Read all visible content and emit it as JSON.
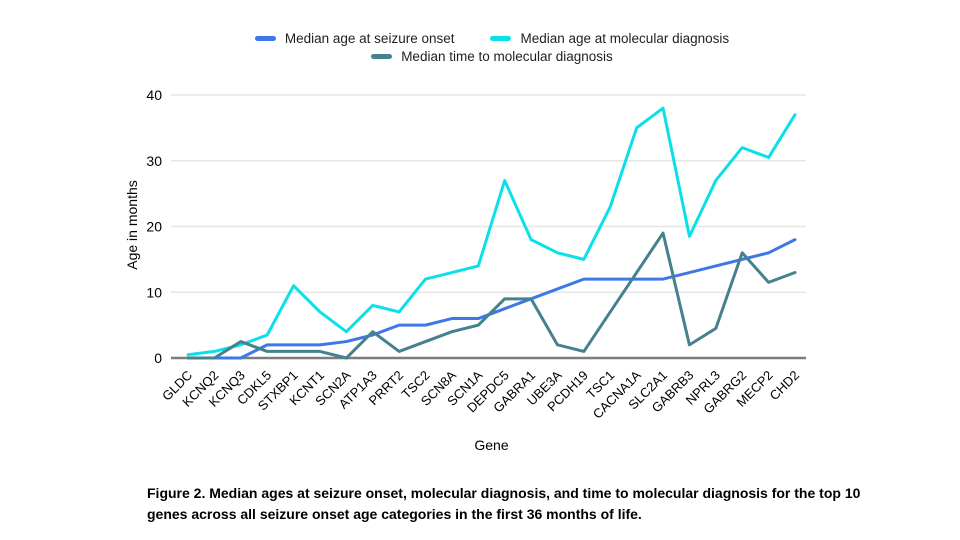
{
  "legend": {
    "items": [
      {
        "label": "Median age at seizure onset"
      },
      {
        "label": "Median age at molecular diagnosis"
      },
      {
        "label": "Median time to molecular diagnosis"
      }
    ]
  },
  "axes": {
    "y_title": "Age in months",
    "x_title": "Gene"
  },
  "caption": {
    "lines": [
      "Figure 2. Median ages at seizure onset, molecular diagnosis, and time to molecular diagnosis for the top 10",
      "genes across all seizure onset age categories in the first 36 months of life."
    ]
  },
  "chart_data": {
    "type": "line",
    "title": "",
    "xlabel": "Gene",
    "ylabel": "Age in months",
    "ylim": [
      0,
      40
    ],
    "yticks": [
      0,
      10,
      20,
      30,
      40
    ],
    "grid": true,
    "legend_position": "top",
    "categories": [
      "GLDC",
      "KCNQ2",
      "KCNQ3",
      "CDKL5",
      "STXBP1",
      "KCNT1",
      "SCN2A",
      "ATP1A3",
      "PRRT2",
      "TSC2",
      "SCN8A",
      "SCN1A",
      "DEPDC5",
      "GABRA1",
      "UBE3A",
      "PCDH19",
      "TSC1",
      "CACNA1A",
      "SLC2A1",
      "GABRB3",
      "NPRL3",
      "GABRG2",
      "MECP2",
      "CHD2"
    ],
    "series": [
      {
        "name": "Median age at seizure onset",
        "color": "#3e78e8",
        "values": [
          0,
          0,
          0,
          2,
          2,
          2,
          2.5,
          3.5,
          5,
          5,
          6,
          6,
          7.5,
          9,
          10.5,
          12,
          12,
          12,
          12,
          13,
          14,
          15,
          16,
          18
        ]
      },
      {
        "name": "Median age at molecular diagnosis",
        "color": "#0be0e8",
        "values": [
          0.5,
          1,
          2,
          3.5,
          11,
          7,
          4,
          8,
          7,
          12,
          13,
          14,
          27,
          18,
          16,
          15,
          23,
          35,
          38,
          18.5,
          27,
          32,
          30.5,
          37
        ]
      },
      {
        "name": "Median time to molecular diagnosis",
        "color": "#45818e",
        "values": [
          0,
          0,
          2.5,
          1,
          1,
          1,
          0,
          4,
          1,
          2.5,
          4,
          5,
          9,
          9,
          2,
          1,
          7,
          13,
          19,
          2,
          4.5,
          16,
          11.5,
          13
        ]
      }
    ],
    "style": {
      "gridline_color": "#e6e6e6",
      "baseline_color": "#7d7d7d",
      "line_width": 3
    }
  }
}
